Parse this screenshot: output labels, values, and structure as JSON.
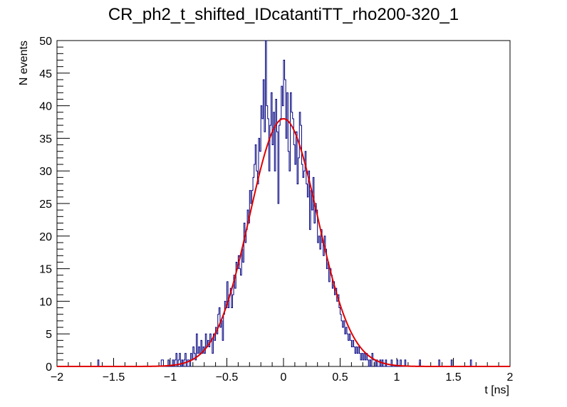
{
  "chart_data": {
    "type": "histogram",
    "title": "CR_ph2_t_shifted_IDcatantiTT_rho200-320_1",
    "xlabel": "t [ns]",
    "ylabel": "N events",
    "xlim": [
      -2,
      2
    ],
    "ylim": [
      0,
      50
    ],
    "x_ticks": [
      -2,
      -1.5,
      -1,
      -0.5,
      0,
      0.5,
      1,
      1.5,
      2
    ],
    "x_tick_labels": [
      "−2",
      "−1.5",
      "−1",
      "−0.5",
      "0",
      "0.5",
      "1",
      "1.5",
      "2"
    ],
    "y_ticks": [
      0,
      5,
      10,
      15,
      20,
      25,
      30,
      35,
      40,
      45,
      50
    ],
    "y_tick_labels": [
      "0",
      "5",
      "10",
      "15",
      "20",
      "25",
      "30",
      "35",
      "40",
      "45",
      "50"
    ],
    "histogram": {
      "name": "data",
      "color": "#000080",
      "bin_edges_range": [
        -2,
        2
      ],
      "n_bins": 400,
      "nonzero_bins": [
        [
          -1.64,
          1
        ],
        [
          -1.08,
          1
        ],
        [
          -1.07,
          1
        ],
        [
          -1.02,
          1
        ],
        [
          -0.98,
          1
        ],
        [
          -0.96,
          1
        ],
        [
          -0.95,
          2
        ],
        [
          -0.93,
          1
        ],
        [
          -0.92,
          2
        ],
        [
          -0.9,
          1
        ],
        [
          -0.88,
          1
        ],
        [
          -0.87,
          2
        ],
        [
          -0.85,
          1
        ],
        [
          -0.84,
          1
        ],
        [
          -0.82,
          2
        ],
        [
          -0.81,
          1
        ],
        [
          -0.8,
          3
        ],
        [
          -0.79,
          2
        ],
        [
          -0.78,
          1
        ],
        [
          -0.77,
          5
        ],
        [
          -0.76,
          2
        ],
        [
          -0.75,
          3
        ],
        [
          -0.74,
          2
        ],
        [
          -0.73,
          4
        ],
        [
          -0.72,
          2
        ],
        [
          -0.71,
          3
        ],
        [
          -0.7,
          2
        ],
        [
          -0.69,
          5
        ],
        [
          -0.68,
          3
        ],
        [
          -0.67,
          4
        ],
        [
          -0.66,
          3
        ],
        [
          -0.65,
          5
        ],
        [
          -0.64,
          4
        ],
        [
          -0.63,
          2
        ],
        [
          -0.62,
          5
        ],
        [
          -0.61,
          4
        ],
        [
          -0.6,
          6
        ],
        [
          -0.59,
          5
        ],
        [
          -0.58,
          8
        ],
        [
          -0.57,
          9
        ],
        [
          -0.56,
          6
        ],
        [
          -0.55,
          7
        ],
        [
          -0.54,
          4
        ],
        [
          -0.53,
          8
        ],
        [
          -0.52,
          10
        ],
        [
          -0.51,
          9
        ],
        [
          -0.5,
          13
        ],
        [
          -0.49,
          9
        ],
        [
          -0.48,
          11
        ],
        [
          -0.47,
          12
        ],
        [
          -0.46,
          9
        ],
        [
          -0.45,
          11
        ],
        [
          -0.44,
          14
        ],
        [
          -0.43,
          12
        ],
        [
          -0.42,
          16
        ],
        [
          -0.41,
          15
        ],
        [
          -0.4,
          17
        ],
        [
          -0.39,
          15
        ],
        [
          -0.38,
          14
        ],
        [
          -0.37,
          18
        ],
        [
          -0.36,
          16
        ],
        [
          -0.35,
          22
        ],
        [
          -0.34,
          19
        ],
        [
          -0.33,
          21
        ],
        [
          -0.32,
          24
        ],
        [
          -0.31,
          22
        ],
        [
          -0.3,
          27
        ],
        [
          -0.29,
          25
        ],
        [
          -0.28,
          27
        ],
        [
          -0.27,
          29
        ],
        [
          -0.26,
          31
        ],
        [
          -0.25,
          34
        ],
        [
          -0.24,
          30
        ],
        [
          -0.23,
          28
        ],
        [
          -0.22,
          35
        ],
        [
          -0.21,
          33
        ],
        [
          -0.2,
          40
        ],
        [
          -0.19,
          38
        ],
        [
          -0.18,
          44
        ],
        [
          -0.17,
          36
        ],
        [
          -0.16,
          50
        ],
        [
          -0.15,
          40
        ],
        [
          -0.14,
          38
        ],
        [
          -0.13,
          30
        ],
        [
          -0.12,
          37
        ],
        [
          -0.11,
          42
        ],
        [
          -0.1,
          34
        ],
        [
          -0.09,
          39
        ],
        [
          -0.08,
          30
        ],
        [
          -0.07,
          41
        ],
        [
          -0.06,
          36
        ],
        [
          -0.05,
          25
        ],
        [
          -0.04,
          37
        ],
        [
          -0.03,
          38
        ],
        [
          -0.02,
          43
        ],
        [
          -0.01,
          40
        ],
        [
          0.0,
          47
        ],
        [
          0.01,
          44
        ],
        [
          0.02,
          35
        ],
        [
          0.03,
          42
        ],
        [
          0.04,
          33
        ],
        [
          0.05,
          30
        ],
        [
          0.06,
          42
        ],
        [
          0.07,
          39
        ],
        [
          0.08,
          38
        ],
        [
          0.09,
          34
        ],
        [
          0.1,
          31
        ],
        [
          0.11,
          36
        ],
        [
          0.12,
          28
        ],
        [
          0.13,
          32
        ],
        [
          0.14,
          39
        ],
        [
          0.15,
          37
        ],
        [
          0.16,
          31
        ],
        [
          0.17,
          29
        ],
        [
          0.18,
          30
        ],
        [
          0.19,
          33
        ],
        [
          0.2,
          28
        ],
        [
          0.21,
          26
        ],
        [
          0.22,
          30
        ],
        [
          0.23,
          21
        ],
        [
          0.24,
          27
        ],
        [
          0.25,
          24
        ],
        [
          0.26,
          29
        ],
        [
          0.27,
          22
        ],
        [
          0.28,
          25
        ],
        [
          0.29,
          24
        ],
        [
          0.3,
          19
        ],
        [
          0.31,
          20
        ],
        [
          0.32,
          18
        ],
        [
          0.33,
          21
        ],
        [
          0.34,
          19
        ],
        [
          0.35,
          17
        ],
        [
          0.36,
          20
        ],
        [
          0.37,
          18
        ],
        [
          0.38,
          15
        ],
        [
          0.39,
          16
        ],
        [
          0.4,
          13
        ],
        [
          0.41,
          15
        ],
        [
          0.42,
          14
        ],
        [
          0.43,
          12
        ],
        [
          0.44,
          13
        ],
        [
          0.45,
          11
        ],
        [
          0.46,
          12
        ],
        [
          0.47,
          10
        ],
        [
          0.48,
          11
        ],
        [
          0.49,
          9
        ],
        [
          0.5,
          8
        ],
        [
          0.51,
          7
        ],
        [
          0.52,
          6
        ],
        [
          0.53,
          7
        ],
        [
          0.54,
          5
        ],
        [
          0.55,
          6
        ],
        [
          0.56,
          5
        ],
        [
          0.57,
          4
        ],
        [
          0.58,
          5
        ],
        [
          0.59,
          4
        ],
        [
          0.6,
          3
        ],
        [
          0.61,
          4
        ],
        [
          0.62,
          3
        ],
        [
          0.63,
          2
        ],
        [
          0.64,
          3
        ],
        [
          0.65,
          2
        ],
        [
          0.66,
          3
        ],
        [
          0.67,
          2
        ],
        [
          0.68,
          1
        ],
        [
          0.69,
          2
        ],
        [
          0.7,
          1
        ],
        [
          0.71,
          2
        ],
        [
          0.72,
          1
        ],
        [
          0.73,
          2
        ],
        [
          0.74,
          1
        ],
        [
          0.76,
          1
        ],
        [
          0.78,
          2
        ],
        [
          0.79,
          1
        ],
        [
          0.8,
          1
        ],
        [
          0.82,
          1
        ],
        [
          0.85,
          1
        ],
        [
          0.87,
          1
        ],
        [
          0.9,
          1
        ],
        [
          0.95,
          1
        ],
        [
          1.0,
          1
        ],
        [
          1.03,
          1
        ],
        [
          1.07,
          1
        ],
        [
          1.2,
          1
        ],
        [
          1.37,
          1
        ],
        [
          1.48,
          1
        ],
        [
          1.65,
          1
        ]
      ]
    },
    "fit": {
      "name": "gaussian fit",
      "color": "#e00000",
      "function": "gaus",
      "amplitude": 38,
      "mean": 0.0,
      "sigma": 0.3
    }
  }
}
